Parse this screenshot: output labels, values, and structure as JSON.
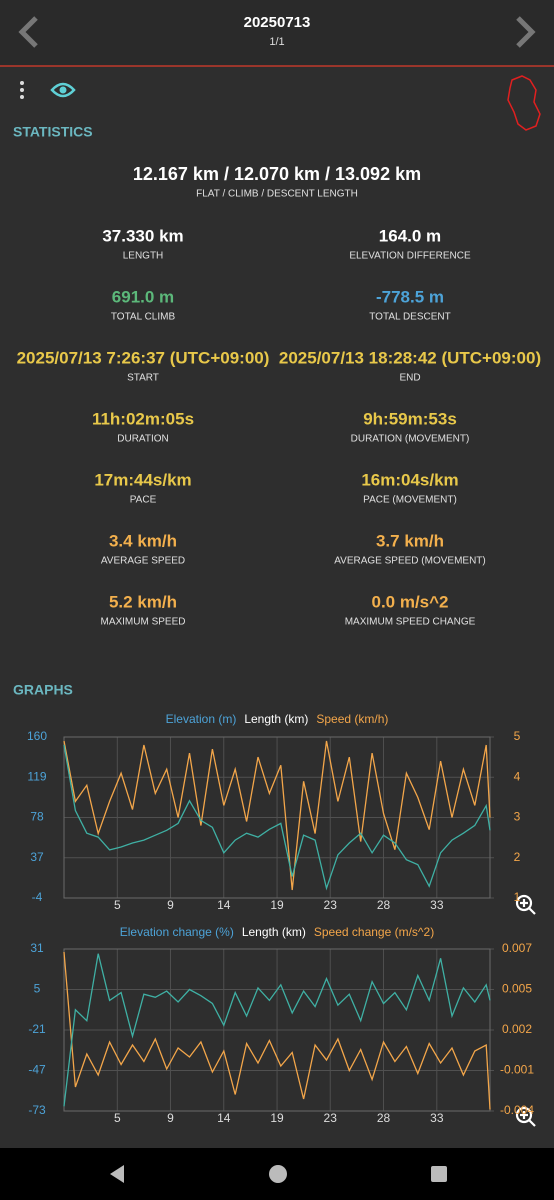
{
  "header": {
    "title": "20250713",
    "subtitle": "1/1"
  },
  "statistics": {
    "heading": "STATISTICS",
    "summary": {
      "value": "12.167 km / 12.070 km / 13.092 km",
      "label": "FLAT / CLIMB / DESCENT LENGTH"
    },
    "items": [
      {
        "value": "37.330 km",
        "label": "LENGTH",
        "color": "#ffffff"
      },
      {
        "value": "164.0 m",
        "label": "ELEVATION DIFFERENCE",
        "color": "#ffffff"
      },
      {
        "value": "691.0 m",
        "label": "TOTAL CLIMB",
        "color": "#5cb87a"
      },
      {
        "value": "-778.5 m",
        "label": "TOTAL DESCENT",
        "color": "#4da3d8"
      },
      {
        "value": "2025/07/13 7:26:37 (UTC+09:00)",
        "label": "START",
        "color": "#e8c84a"
      },
      {
        "value": "2025/07/13 18:28:42 (UTC+09:00)",
        "label": "END",
        "color": "#e8c84a"
      },
      {
        "value": "11h:02m:05s",
        "label": "DURATION",
        "color": "#e8c84a"
      },
      {
        "value": "9h:59m:53s",
        "label": "DURATION (MOVEMENT)",
        "color": "#e8c84a"
      },
      {
        "value": "17m:44s/km",
        "label": "PACE",
        "color": "#e8c84a"
      },
      {
        "value": "16m:04s/km",
        "label": "PACE (MOVEMENT)",
        "color": "#e8c84a"
      },
      {
        "value": "3.4 km/h",
        "label": "AVERAGE SPEED",
        "color": "#f3b04d"
      },
      {
        "value": "3.7 km/h",
        "label": "AVERAGE SPEED (MOVEMENT)",
        "color": "#f3b04d"
      },
      {
        "value": "5.2 km/h",
        "label": "MAXIMUM SPEED",
        "color": "#f3b04d"
      },
      {
        "value": "0.0 m/s^2",
        "label": "MAXIMUM SPEED CHANGE",
        "color": "#f3b04d"
      }
    ]
  },
  "graphs_heading": "GRAPHS",
  "chart_data": [
    {
      "type": "line",
      "xlabel": "Length (km)",
      "x": [
        0,
        1,
        2,
        3,
        4,
        5,
        6,
        7,
        8,
        9,
        10,
        11,
        12,
        13,
        14,
        15,
        16,
        17,
        18,
        19,
        20,
        21,
        22,
        23,
        24,
        25,
        26,
        27,
        28,
        29,
        30,
        31,
        32,
        33,
        34,
        35,
        36,
        37,
        37.33
      ],
      "xlim": [
        0,
        37.33
      ],
      "xticks": [
        {
          "value": 4.67,
          "label": "5"
        },
        {
          "value": 9.33,
          "label": "9"
        },
        {
          "value": 14,
          "label": "14"
        },
        {
          "value": 18.67,
          "label": "19"
        },
        {
          "value": 23.33,
          "label": "23"
        },
        {
          "value": 28,
          "label": "28"
        },
        {
          "value": 32.67,
          "label": "33"
        }
      ],
      "ylim": [
        -4,
        160
      ],
      "yticks": [
        160,
        119,
        78,
        37,
        -4
      ],
      "y2lim": [
        1,
        5
      ],
      "y2ticks": [
        5,
        4,
        3,
        2,
        1
      ],
      "grid": true,
      "series": [
        {
          "name": "Elevation (m)",
          "color": "#4da3d8",
          "line_color": "#3fb0a4",
          "values": [
            152,
            85,
            62,
            58,
            45,
            48,
            52,
            55,
            60,
            65,
            72,
            95,
            75,
            68,
            42,
            55,
            62,
            58,
            66,
            72,
            18,
            60,
            55,
            6,
            40,
            52,
            62,
            42,
            60,
            52,
            35,
            30,
            8,
            42,
            55,
            62,
            70,
            90,
            65
          ]
        },
        {
          "name": "Speed (km/h)",
          "color": "#f3a64a",
          "axis": "y2",
          "values": [
            4.9,
            3.4,
            3.8,
            2.6,
            3.4,
            4.1,
            3.2,
            4.8,
            3.6,
            4.2,
            3.0,
            4.6,
            2.8,
            4.7,
            3.3,
            4.2,
            2.9,
            4.5,
            3.6,
            4.3,
            1.2,
            3.9,
            2.6,
            4.9,
            3.4,
            4.5,
            2.4,
            4.6,
            3.1,
            2.2,
            4.1,
            3.5,
            2.7,
            4.4,
            3.0,
            4.2,
            3.3,
            4.8,
            3.0
          ]
        }
      ]
    },
    {
      "type": "line",
      "xlabel": "Length (km)",
      "x": [
        0,
        1,
        2,
        3,
        4,
        5,
        6,
        7,
        8,
        9,
        10,
        11,
        12,
        13,
        14,
        15,
        16,
        17,
        18,
        19,
        20,
        21,
        22,
        23,
        24,
        25,
        26,
        27,
        28,
        29,
        30,
        31,
        32,
        33,
        34,
        35,
        36,
        37,
        37.33
      ],
      "xlim": [
        0,
        37.33
      ],
      "xticks": [
        {
          "value": 4.67,
          "label": "5"
        },
        {
          "value": 9.33,
          "label": "9"
        },
        {
          "value": 14,
          "label": "14"
        },
        {
          "value": 18.67,
          "label": "19"
        },
        {
          "value": 23.33,
          "label": "23"
        },
        {
          "value": 28,
          "label": "28"
        },
        {
          "value": 32.67,
          "label": "33"
        }
      ],
      "ylim": [
        -73,
        31
      ],
      "yticks": [
        31,
        5,
        -21,
        -47,
        -73
      ],
      "y2lim": [
        -0.0036,
        0.0072
      ],
      "y2ticks": [
        {
          "value": 0.0072,
          "label": "0.007"
        },
        {
          "value": 0.0045,
          "label": "0.005"
        },
        {
          "value": 0.0018,
          "label": "0.002"
        },
        {
          "value": -0.0009,
          "label": "-0.001"
        },
        {
          "value": -0.0036,
          "label": "-0.004"
        }
      ],
      "grid": true,
      "series": [
        {
          "name": "Elevation change (%)",
          "color": "#4da3d8",
          "line_color": "#3fb0a4",
          "values": [
            -70,
            -8,
            -15,
            28,
            -2,
            3,
            -25,
            2,
            0,
            4,
            -3,
            5,
            1,
            -4,
            -18,
            3,
            -12,
            6,
            -2,
            8,
            -10,
            4,
            -6,
            12,
            -5,
            2,
            -15,
            10,
            -4,
            3,
            -8,
            14,
            -2,
            25,
            -12,
            6,
            -3,
            8,
            -2
          ]
        },
        {
          "name": "Speed change (m/s^2)",
          "color": "#f3a64a",
          "axis": "y2",
          "values": [
            0.007,
            -0.002,
            0.0002,
            -0.0012,
            0.001,
            -0.0005,
            0.0008,
            -0.0003,
            0.0012,
            -0.0008,
            0.0006,
            0.0,
            0.001,
            -0.001,
            0.0004,
            -0.0025,
            0.0009,
            -0.0004,
            0.0011,
            -0.0006,
            0.0003,
            -0.0028,
            0.0008,
            -0.0002,
            0.0012,
            -0.0009,
            0.0005,
            -0.0015,
            0.001,
            -0.0003,
            0.0007,
            -0.0011,
            0.0009,
            -0.0004,
            0.0006,
            -0.0012,
            0.0004,
            0.0008,
            -0.0035
          ]
        }
      ]
    }
  ]
}
